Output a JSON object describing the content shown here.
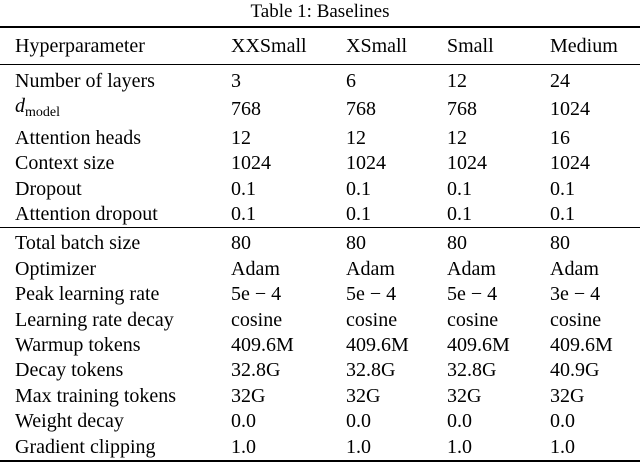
{
  "caption": "Table 1: Baselines",
  "header": {
    "col0": "Hyperparameter",
    "col1": "XXSmall",
    "col2": "XSmall",
    "col3": "Small",
    "col4": "Medium"
  },
  "group1": [
    {
      "name": "Number of layers",
      "values": [
        "3",
        "6",
        "12",
        "24"
      ]
    },
    {
      "name_symbol": "d",
      "name_sub": "model",
      "values": [
        "768",
        "768",
        "768",
        "1024"
      ]
    },
    {
      "name": "Attention heads",
      "values": [
        "12",
        "12",
        "12",
        "16"
      ]
    },
    {
      "name": "Context size",
      "values": [
        "1024",
        "1024",
        "1024",
        "1024"
      ]
    },
    {
      "name": "Dropout",
      "values": [
        "0.1",
        "0.1",
        "0.1",
        "0.1"
      ]
    },
    {
      "name": "Attention dropout",
      "values": [
        "0.1",
        "0.1",
        "0.1",
        "0.1"
      ]
    }
  ],
  "group2": [
    {
      "name": "Total batch size",
      "values": [
        "80",
        "80",
        "80",
        "80"
      ]
    },
    {
      "name": "Optimizer",
      "values": [
        "Adam",
        "Adam",
        "Adam",
        "Adam"
      ]
    },
    {
      "name": "Peak learning rate",
      "values": [
        "5e − 4",
        "5e − 4",
        "5e − 4",
        "3e − 4"
      ]
    },
    {
      "name": "Learning rate decay",
      "values": [
        "cosine",
        "cosine",
        "cosine",
        "cosine"
      ]
    },
    {
      "name": "Warmup tokens",
      "values": [
        "409.6M",
        "409.6M",
        "409.6M",
        "409.6M"
      ]
    },
    {
      "name": "Decay tokens",
      "values": [
        "32.8G",
        "32.8G",
        "32.8G",
        "40.9G"
      ]
    },
    {
      "name": "Max training tokens",
      "values": [
        "32G",
        "32G",
        "32G",
        "32G"
      ]
    },
    {
      "name": "Weight decay",
      "values": [
        "0.0",
        "0.0",
        "0.0",
        "0.0"
      ]
    },
    {
      "name": "Gradient clipping",
      "values": [
        "1.0",
        "1.0",
        "1.0",
        "1.0"
      ]
    }
  ]
}
